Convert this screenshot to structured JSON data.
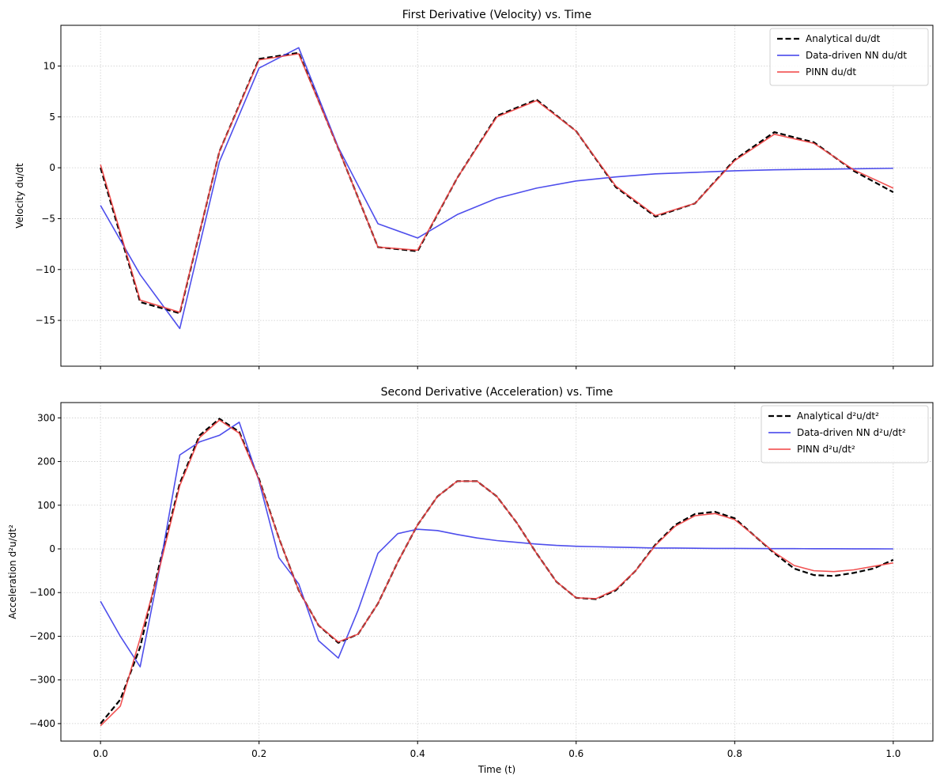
{
  "chart_data": [
    {
      "type": "line",
      "title": "First Derivative (Velocity) vs. Time",
      "xlabel": "",
      "ylabel": "Velocity du/dt",
      "xlim": [
        -0.05,
        1.05
      ],
      "ylim": [
        -19.5,
        14
      ],
      "xticks": [
        0.0,
        0.2,
        0.4,
        0.6,
        0.8,
        1.0
      ],
      "xtick_labels_visible": false,
      "yticks": [
        -15,
        -10,
        -5,
        0,
        5,
        10
      ],
      "ytick_labels": [
        "−15",
        "−10",
        "−5",
        "0",
        "5",
        "10"
      ],
      "grid": true,
      "legend_position": "top-right",
      "x": [
        0.0,
        0.05,
        0.1,
        0.15,
        0.2,
        0.25,
        0.3,
        0.35,
        0.4,
        0.45,
        0.5,
        0.55,
        0.6,
        0.65,
        0.7,
        0.75,
        0.8,
        0.85,
        0.9,
        0.95,
        1.0
      ],
      "series": [
        {
          "name": "Analytical du/dt",
          "color": "#000000",
          "style": "dashed",
          "values": [
            0.0,
            -13.2,
            -14.3,
            1.6,
            10.7,
            11.3,
            1.9,
            -7.8,
            -8.2,
            -1.0,
            5.1,
            6.7,
            3.6,
            -1.9,
            -4.8,
            -3.5,
            0.8,
            3.5,
            2.5,
            -0.3,
            -2.4
          ]
        },
        {
          "name": "Data-driven NN du/dt",
          "color": "#3b3bea",
          "style": "solid",
          "values": [
            -3.7,
            -10.5,
            -15.8,
            0.6,
            9.8,
            11.8,
            2.0,
            -5.5,
            -6.9,
            -4.6,
            -3.0,
            -2.0,
            -1.3,
            -0.9,
            -0.6,
            -0.45,
            -0.3,
            -0.2,
            -0.15,
            -0.1,
            -0.05
          ]
        },
        {
          "name": "PINN du/dt",
          "color": "#f04040",
          "style": "solid",
          "values": [
            0.3,
            -13.0,
            -14.2,
            1.6,
            10.6,
            11.2,
            1.9,
            -7.8,
            -8.1,
            -1.0,
            5.0,
            6.6,
            3.6,
            -1.8,
            -4.7,
            -3.5,
            0.7,
            3.3,
            2.4,
            -0.2,
            -2.0
          ]
        }
      ]
    },
    {
      "type": "line",
      "title": "Second Derivative (Acceleration) vs. Time",
      "xlabel": "Time (t)",
      "ylabel": "Acceleration d²u/dt²",
      "xlim": [
        -0.05,
        1.05
      ],
      "ylim": [
        -440,
        335
      ],
      "xticks": [
        0.0,
        0.2,
        0.4,
        0.6,
        0.8,
        1.0
      ],
      "xtick_labels": [
        "0.0",
        "0.2",
        "0.4",
        "0.6",
        "0.8",
        "1.0"
      ],
      "yticks": [
        -400,
        -300,
        -200,
        -100,
        0,
        100,
        200,
        300
      ],
      "ytick_labels": [
        "−400",
        "−300",
        "−200",
        "−100",
        "0",
        "100",
        "200",
        "300"
      ],
      "grid": true,
      "legend_position": "top-right",
      "x": [
        0.0,
        0.025,
        0.05,
        0.075,
        0.1,
        0.125,
        0.15,
        0.175,
        0.2,
        0.225,
        0.25,
        0.275,
        0.3,
        0.325,
        0.35,
        0.375,
        0.4,
        0.425,
        0.45,
        0.475,
        0.5,
        0.525,
        0.55,
        0.575,
        0.6,
        0.625,
        0.65,
        0.675,
        0.7,
        0.725,
        0.75,
        0.775,
        0.8,
        0.825,
        0.85,
        0.875,
        0.9,
        0.925,
        0.95,
        0.975,
        1.0
      ],
      "series": [
        {
          "name": "Analytical d²u/dt²",
          "color": "#000000",
          "style": "dashed",
          "values": [
            -400,
            -345,
            -225,
            -30,
            150,
            260,
            298,
            268,
            160,
            25,
            -95,
            -175,
            -215,
            -195,
            -125,
            -30,
            55,
            120,
            155,
            155,
            120,
            60,
            -10,
            -75,
            -112,
            -115,
            -95,
            -50,
            10,
            55,
            80,
            85,
            70,
            30,
            -10,
            -45,
            -60,
            -62,
            -55,
            -45,
            -25
          ]
        },
        {
          "name": "Data-driven NN d²u/dt²",
          "color": "#3b3bea",
          "style": "solid",
          "values": [
            -120,
            -200,
            -270,
            -40,
            215,
            245,
            260,
            290,
            155,
            -20,
            -80,
            -210,
            -250,
            -140,
            -10,
            35,
            45,
            42,
            33,
            25,
            19,
            15,
            11,
            8,
            6,
            5,
            4,
            3,
            2,
            2,
            1.5,
            1,
            1,
            0.8,
            0.6,
            0.5,
            0.4,
            0.3,
            0.2,
            0.1,
            0
          ]
        },
        {
          "name": "PINN d²u/dt²",
          "color": "#f04040",
          "style": "solid",
          "values": [
            -405,
            -360,
            -205,
            -40,
            145,
            255,
            295,
            265,
            158,
            25,
            -95,
            -175,
            -213,
            -195,
            -125,
            -30,
            55,
            120,
            155,
            155,
            120,
            60,
            -10,
            -75,
            -112,
            -114,
            -93,
            -50,
            8,
            52,
            76,
            81,
            67,
            30,
            -8,
            -38,
            -50,
            -52,
            -48,
            -40,
            -32
          ]
        }
      ]
    }
  ]
}
